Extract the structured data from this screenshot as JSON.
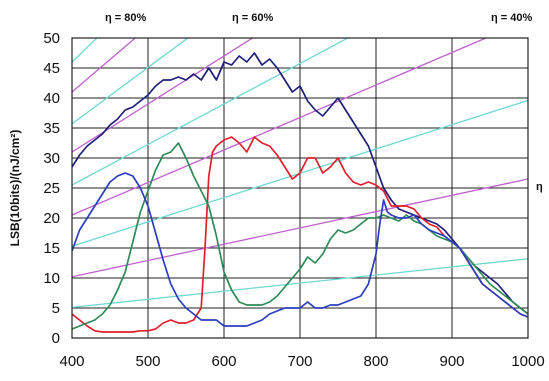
{
  "chart_data": {
    "type": "line",
    "title": "",
    "xlabel": "",
    "ylabel": "LSB(10bits)/(nJ/cm²)",
    "xlim": [
      400,
      1000
    ],
    "ylim": [
      0,
      50
    ],
    "x_ticks": [
      "400",
      "500",
      "600",
      "700",
      "800",
      "900",
      "1000"
    ],
    "y_ticks": [
      "0",
      "5",
      "10",
      "15",
      "20",
      "25",
      "30",
      "35",
      "40",
      "45",
      "50"
    ],
    "grid": true,
    "legend": "none",
    "annotations": [
      "η = 80%",
      "η = 60%",
      "η = 40%",
      "η"
    ],
    "colors": {
      "navy": "#1f1f7a",
      "red": "#e0202a",
      "green": "#2e8b57",
      "blue": "#2a3fbf",
      "magenta_iso": "#c060d0",
      "cyan_iso": "#70d8d0"
    },
    "series": [
      {
        "color": "navy",
        "x": [
          400,
          410,
          420,
          430,
          440,
          450,
          460,
          470,
          480,
          490,
          500,
          510,
          520,
          530,
          540,
          550,
          560,
          570,
          580,
          590,
          600,
          610,
          620,
          630,
          640,
          650,
          660,
          670,
          680,
          690,
          700,
          710,
          720,
          730,
          740,
          750,
          760,
          770,
          780,
          790,
          800,
          810,
          820,
          830,
          840,
          850,
          860,
          870,
          880,
          890,
          900,
          910,
          920,
          930,
          940,
          950,
          960,
          970,
          980,
          990,
          1000
        ],
        "y": [
          28.5,
          30.5,
          32,
          33,
          34,
          35.5,
          36.5,
          38,
          38.5,
          39.5,
          40.5,
          42,
          43,
          43,
          43.5,
          43,
          44,
          43,
          45,
          43,
          46,
          45.5,
          47,
          46,
          47.5,
          45.5,
          46.5,
          45,
          43,
          41,
          42,
          39.5,
          38,
          37,
          38.5,
          40,
          38,
          36,
          34,
          32,
          28.5,
          25,
          23,
          21.5,
          21,
          20.5,
          20,
          19.5,
          19,
          18,
          16.5,
          15,
          13.5,
          12,
          11,
          10,
          9,
          7.5,
          6,
          5,
          4
        ]
      },
      {
        "color": "red",
        "x": [
          400,
          410,
          420,
          430,
          440,
          450,
          460,
          470,
          480,
          490,
          500,
          510,
          520,
          530,
          540,
          550,
          560,
          570,
          575,
          580,
          585,
          590,
          600,
          610,
          620,
          630,
          640,
          650,
          660,
          670,
          680,
          690,
          700,
          710,
          720,
          730,
          740,
          750,
          760,
          770,
          780,
          790,
          800,
          810,
          820,
          830,
          840,
          850,
          860,
          870,
          880,
          890,
          900,
          910,
          920,
          930,
          940,
          950,
          960,
          970,
          980,
          990,
          1000
        ],
        "y": [
          4,
          3,
          2,
          1.2,
          1,
          1,
          1,
          1,
          1,
          1.2,
          1.2,
          1.5,
          2.5,
          3,
          2.5,
          2.5,
          3,
          5,
          15,
          27,
          31,
          32,
          33,
          33.5,
          32.5,
          31,
          33.5,
          32.5,
          32,
          30.5,
          28.5,
          26.5,
          27.5,
          30,
          30,
          27.5,
          28.5,
          30,
          27.5,
          26,
          25.5,
          26,
          25.5,
          24.5,
          22,
          22,
          22,
          21.5,
          20,
          19,
          18.5,
          17,
          16,
          15,
          13,
          11,
          9,
          8,
          7,
          6,
          5,
          4,
          3.5
        ]
      },
      {
        "color": "green",
        "x": [
          400,
          410,
          420,
          430,
          440,
          450,
          460,
          470,
          480,
          490,
          500,
          510,
          520,
          530,
          540,
          550,
          560,
          570,
          580,
          590,
          600,
          610,
          620,
          630,
          640,
          650,
          660,
          670,
          680,
          690,
          700,
          710,
          720,
          730,
          740,
          750,
          760,
          770,
          780,
          790,
          800,
          810,
          820,
          830,
          840,
          850,
          860,
          870,
          880,
          890,
          900,
          910,
          920,
          930,
          940,
          950,
          960,
          970,
          980,
          990,
          1000
        ],
        "y": [
          1.5,
          2,
          2.5,
          3,
          4,
          5.5,
          8,
          11,
          16,
          21,
          24.5,
          28,
          30.5,
          31,
          32.5,
          30,
          27,
          24.5,
          22,
          17,
          11,
          8,
          6,
          5.5,
          5.5,
          5.5,
          6,
          7,
          8.5,
          10,
          11.5,
          13.5,
          12.5,
          14,
          16.5,
          18,
          17.5,
          18,
          19,
          20,
          20,
          20.5,
          20,
          19.5,
          20.5,
          19.5,
          19,
          18,
          17,
          16.5,
          16,
          15,
          13.5,
          12,
          10.5,
          9,
          8,
          7,
          6,
          5,
          4
        ]
      },
      {
        "color": "blue",
        "x": [
          400,
          410,
          420,
          430,
          440,
          450,
          460,
          470,
          480,
          490,
          500,
          510,
          520,
          530,
          540,
          550,
          560,
          570,
          580,
          590,
          600,
          610,
          620,
          630,
          640,
          650,
          660,
          670,
          680,
          690,
          700,
          710,
          720,
          730,
          740,
          750,
          760,
          770,
          780,
          790,
          800,
          805,
          810,
          815,
          820,
          830,
          840,
          850,
          860,
          870,
          880,
          890,
          900,
          910,
          920,
          930,
          940,
          950,
          960,
          970,
          980,
          990,
          1000
        ],
        "y": [
          14.5,
          18,
          20,
          22,
          24,
          26,
          27,
          27.5,
          27,
          25,
          22,
          17.5,
          13,
          9,
          6.5,
          5,
          4,
          3,
          3,
          3,
          2,
          2,
          2,
          2,
          2.5,
          3,
          4,
          4.5,
          5,
          5,
          5,
          6,
          5,
          5,
          5.5,
          5.5,
          6,
          6.5,
          7,
          9,
          14,
          19,
          23,
          21,
          20.5,
          20,
          20,
          20.5,
          19,
          18,
          17.5,
          17,
          16,
          15,
          13,
          11,
          9,
          8,
          7,
          6,
          5,
          4,
          3.5
        ]
      }
    ],
    "iso_lines": [
      {
        "color": "magenta_iso",
        "x": [
          400,
          1000
        ],
        "y": [
          10.2,
          26.5
        ]
      },
      {
        "color": "magenta_iso",
        "x": [
          400,
          1000
        ],
        "y": [
          20.5,
          53
        ]
      },
      {
        "color": "magenta_iso",
        "x": [
          400,
          1000
        ],
        "y": [
          31,
          79
        ]
      },
      {
        "color": "magenta_iso",
        "x": [
          400,
          1000
        ],
        "y": [
          41,
          106
        ]
      },
      {
        "color": "cyan_iso",
        "x": [
          400,
          1000
        ],
        "y": [
          5.1,
          13.2
        ]
      },
      {
        "color": "cyan_iso",
        "x": [
          400,
          1000
        ],
        "y": [
          15.3,
          39.6
        ]
      },
      {
        "color": "cyan_iso",
        "x": [
          400,
          1000
        ],
        "y": [
          25.5,
          66
        ]
      },
      {
        "color": "cyan_iso",
        "x": [
          400,
          1000
        ],
        "y": [
          35.7,
          92
        ]
      },
      {
        "color": "cyan_iso",
        "x": [
          400,
          1000
        ],
        "y": [
          46,
          119
        ]
      }
    ]
  }
}
